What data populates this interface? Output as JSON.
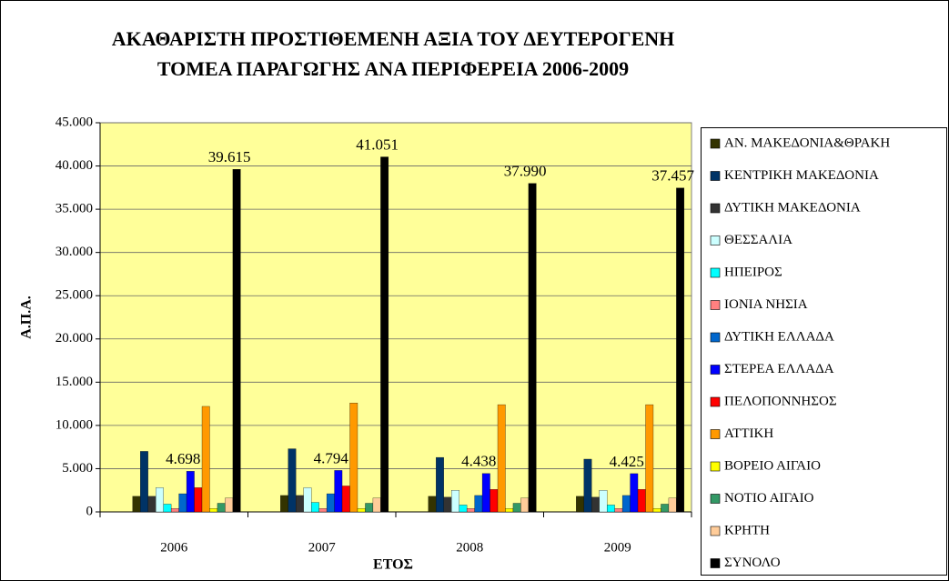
{
  "chart_data": {
    "type": "bar",
    "title": [
      "ΑΚΑΘΑΡΙΣΤΗ ΠΡΟΣΤΙΘΕΜΕΝΗ ΑΞΙΑ ΤΟΥ ΔΕΥΤΕΡΟΓΕΝΗ",
      "ΤΟΜΕΑ ΠΑΡΑΓΩΓΗΣ ΑΝΑ ΠΕΡΙΦΕΡΕΙΑ 2006-2009"
    ],
    "x_label": "ΕΤΟΣ",
    "y_label": "Α.Π.Α.",
    "categories": [
      "2006",
      "2007",
      "2008",
      "2009"
    ],
    "ylim": [
      0,
      45000
    ],
    "yticks": [
      0,
      {
        "value": 5000,
        "label": "5.000"
      },
      {
        "value": 10000,
        "label": "10.000"
      },
      {
        "value": 15000,
        "label": "15.000"
      },
      {
        "value": 20000,
        "label": "20.000"
      },
      {
        "value": 25000,
        "label": "25.000"
      },
      {
        "value": 30000,
        "label": "30.000"
      },
      {
        "value": 35000,
        "label": "35.000"
      },
      {
        "value": 40000,
        "label": "40.000"
      },
      {
        "value": 45000,
        "label": "45.000"
      }
    ],
    "grid": true,
    "plot_background": "#ffff99",
    "legend": "right",
    "series": [
      {
        "name": "ΑΝ. ΜΑΚΕΔΟΝΙΑ&ΘΡΑΚΗ",
        "color": "#333300",
        "values": [
          1800,
          1900,
          1800,
          1800
        ]
      },
      {
        "name": "ΚΕΝΤΡΙΚΗ ΜΑΚΕΔΟΝΙΑ",
        "color": "#003366",
        "values": [
          7000,
          7300,
          6300,
          6100
        ]
      },
      {
        "name": "ΔΥΤΙΚΗ ΜΑΚΕΔΟΝΙΑ",
        "color": "#333333",
        "values": [
          1800,
          1900,
          1700,
          1700
        ]
      },
      {
        "name": "ΘΕΣΣΑΛΙΑ",
        "color": "#ccffff",
        "values": [
          2800,
          2800,
          2500,
          2500
        ]
      },
      {
        "name": "ΗΠΕΙΡΟΣ",
        "color": "#00ffff",
        "values": [
          900,
          1100,
          800,
          800
        ]
      },
      {
        "name": "ΙΟΝΙΑ ΝΗΣΙΑ",
        "color": "#ff8080",
        "values": [
          400,
          400,
          400,
          400
        ]
      },
      {
        "name": "ΔΥΤΙΚΗ ΕΛΛΑΔΑ",
        "color": "#0066cc",
        "values": [
          2100,
          2100,
          1900,
          1900
        ]
      },
      {
        "name": "ΣΤΕΡΕΑ ΕΛΛΑΔΑ",
        "color": "#0000ff",
        "values": [
          4698,
          4794,
          4438,
          4425
        ],
        "value_labels": [
          "4.698",
          "4.794",
          "4.438",
          "4.425"
        ]
      },
      {
        "name": "ΠΕΛΟΠΟΝΝΗΣΟΣ",
        "color": "#ff0000",
        "values": [
          2800,
          3000,
          2600,
          2600
        ]
      },
      {
        "name": "ΑΤΤΙΚΗ",
        "color": "#ff9900",
        "values": [
          12200,
          12600,
          12400,
          12400
        ]
      },
      {
        "name": "ΒΟΡΕΙΟ ΑΙΓΑΙΟ",
        "color": "#ffff00",
        "values": [
          400,
          400,
          400,
          400
        ]
      },
      {
        "name": "ΝΟΤΙΟ ΑΙΓΑΙΟ",
        "color": "#339966",
        "values": [
          1000,
          1000,
          1000,
          900
        ]
      },
      {
        "name": "ΚΡΗΤΗ",
        "color": "#ffcc99",
        "values": [
          1600,
          1600,
          1600,
          1600
        ]
      },
      {
        "name": "ΣΥΝΟΛΟ",
        "color": "#000000",
        "values": [
          39615,
          41051,
          37990,
          37457
        ],
        "value_labels": [
          "39.615",
          "41.051",
          "37.990",
          "37.457"
        ]
      }
    ]
  }
}
